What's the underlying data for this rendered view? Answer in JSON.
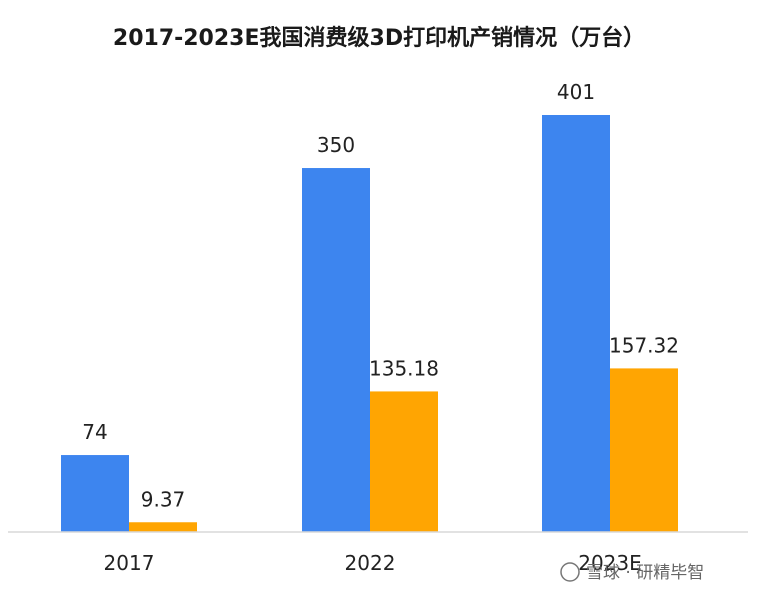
{
  "chart_data": {
    "type": "bar",
    "title": "2017-2023E我国消费级3D打印机产销情况（万台）",
    "categories": [
      "2017",
      "2022",
      "2023E"
    ],
    "series": [
      {
        "values": [
          74,
          350,
          401
        ],
        "color": "#3d85ef"
      },
      {
        "values": [
          9.37,
          135.18,
          157.32
        ],
        "color": "#ffa502"
      }
    ],
    "data_labels": [
      [
        "74",
        "350",
        "401"
      ],
      [
        "9.37",
        "135.18",
        "157.32"
      ]
    ],
    "ylim": [
      0,
      401
    ],
    "grid": false,
    "legend": "none"
  },
  "watermark": "雪球 · 研精毕智"
}
